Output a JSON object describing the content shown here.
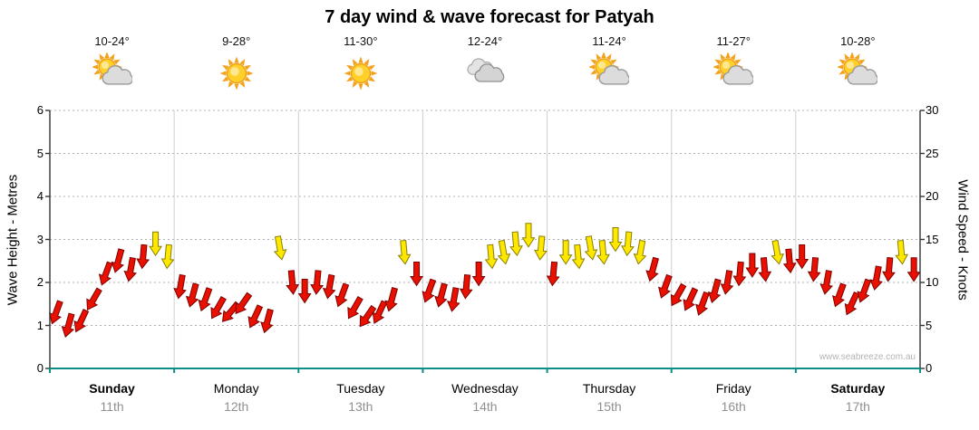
{
  "title": "7 day wind & wave forecast for Patyah",
  "watermark": "www.seabreeze.com.au",
  "left_axis": {
    "label": "Wave Height - Metres",
    "min": 0,
    "max": 6,
    "ticks": [
      0,
      1,
      2,
      3,
      4,
      5,
      6
    ]
  },
  "right_axis": {
    "label": "Wind Speed - Knots",
    "min": 0,
    "max": 30,
    "ticks": [
      0,
      5,
      10,
      15,
      20,
      25,
      30
    ]
  },
  "days": [
    {
      "name": "Sunday",
      "date": "11th",
      "temp": "10-24°",
      "icon": "partly-cloudy",
      "weekend": true
    },
    {
      "name": "Monday",
      "date": "12th",
      "temp": "9-28°",
      "icon": "sunny",
      "weekend": false
    },
    {
      "name": "Tuesday",
      "date": "13th",
      "temp": "11-30°",
      "icon": "sunny",
      "weekend": false
    },
    {
      "name": "Wednesday",
      "date": "14th",
      "temp": "12-24°",
      "icon": "cloudy",
      "weekend": false
    },
    {
      "name": "Thursday",
      "date": "15th",
      "temp": "11-24°",
      "icon": "partly-cloudy",
      "weekend": false
    },
    {
      "name": "Friday",
      "date": "16th",
      "temp": "11-27°",
      "icon": "partly-cloudy",
      "weekend": false
    },
    {
      "name": "Saturday",
      "date": "17th",
      "temp": "10-28°",
      "icon": "partly-cloudy",
      "weekend": true
    }
  ],
  "chart_data": {
    "type": "scatter",
    "subtype": "wind-direction-arrows",
    "title": "7 day wind & wave forecast for Patyah",
    "x_axis": {
      "categories": [
        "Sunday 11th",
        "Monday 12th",
        "Tuesday 13th",
        "Wednesday 14th",
        "Thursday 15th",
        "Friday 16th",
        "Saturday 17th"
      ],
      "range_days": 7
    },
    "y_left": {
      "label": "Wave Height - Metres",
      "min": 0,
      "max": 6
    },
    "y_right": {
      "label": "Wind Speed - Knots",
      "min": 0,
      "max": 30
    },
    "grid": true,
    "legend_position": "none",
    "point_format": [
      "day_index",
      "day_fraction",
      "wind_speed_knots",
      "direction_deg",
      "color_key"
    ],
    "colors": {
      "r": {
        "name": "red",
        "fill": "#e81000",
        "stroke": "#7d0000"
      },
      "y": {
        "name": "yellow",
        "fill": "#ffe800",
        "stroke": "#8a7d00"
      }
    },
    "points": [
      [
        0,
        0.05,
        6.5,
        200,
        "r"
      ],
      [
        0,
        0.15,
        5,
        195,
        "r"
      ],
      [
        0,
        0.25,
        5.5,
        205,
        "r"
      ],
      [
        0,
        0.35,
        8,
        210,
        "r"
      ],
      [
        0,
        0.45,
        11,
        200,
        "r"
      ],
      [
        0,
        0.55,
        12.5,
        195,
        "r"
      ],
      [
        0,
        0.65,
        11.5,
        190,
        "r"
      ],
      [
        0,
        0.75,
        13,
        185,
        "r"
      ],
      [
        0,
        0.85,
        14.5,
        180,
        "y"
      ],
      [
        0,
        0.95,
        13,
        185,
        "y"
      ],
      [
        1,
        0.05,
        9.5,
        190,
        "r"
      ],
      [
        1,
        0.15,
        8.5,
        195,
        "r"
      ],
      [
        1,
        0.25,
        8,
        200,
        "r"
      ],
      [
        1,
        0.35,
        7,
        210,
        "r"
      ],
      [
        1,
        0.45,
        6.5,
        220,
        "r"
      ],
      [
        1,
        0.55,
        7.5,
        215,
        "r"
      ],
      [
        1,
        0.65,
        6,
        205,
        "r"
      ],
      [
        1,
        0.75,
        5.5,
        195,
        "r"
      ],
      [
        1,
        0.85,
        14,
        170,
        "y"
      ],
      [
        1,
        0.95,
        10,
        175,
        "r"
      ],
      [
        2,
        0.05,
        9,
        180,
        "r"
      ],
      [
        2,
        0.15,
        10,
        185,
        "r"
      ],
      [
        2,
        0.25,
        9.5,
        190,
        "r"
      ],
      [
        2,
        0.35,
        8.5,
        200,
        "r"
      ],
      [
        2,
        0.45,
        7,
        210,
        "r"
      ],
      [
        2,
        0.55,
        6,
        215,
        "r"
      ],
      [
        2,
        0.65,
        6.5,
        205,
        "r"
      ],
      [
        2,
        0.75,
        8,
        195,
        "r"
      ],
      [
        2,
        0.85,
        13.5,
        175,
        "y"
      ],
      [
        2,
        0.95,
        11,
        180,
        "r"
      ],
      [
        3,
        0.05,
        9,
        200,
        "r"
      ],
      [
        3,
        0.15,
        8.5,
        195,
        "r"
      ],
      [
        3,
        0.25,
        8,
        190,
        "r"
      ],
      [
        3,
        0.35,
        9.5,
        185,
        "r"
      ],
      [
        3,
        0.45,
        11,
        180,
        "r"
      ],
      [
        3,
        0.55,
        13,
        175,
        "y"
      ],
      [
        3,
        0.65,
        13.5,
        170,
        "y"
      ],
      [
        3,
        0.75,
        14.5,
        175,
        "y"
      ],
      [
        3,
        0.85,
        15.5,
        180,
        "y"
      ],
      [
        3,
        0.95,
        14,
        185,
        "y"
      ],
      [
        4,
        0.05,
        11,
        185,
        "r"
      ],
      [
        4,
        0.15,
        13.5,
        180,
        "y"
      ],
      [
        4,
        0.25,
        13,
        175,
        "y"
      ],
      [
        4,
        0.35,
        14,
        170,
        "y"
      ],
      [
        4,
        0.45,
        13.5,
        175,
        "y"
      ],
      [
        4,
        0.55,
        15,
        180,
        "y"
      ],
      [
        4,
        0.65,
        14.5,
        185,
        "y"
      ],
      [
        4,
        0.75,
        13.5,
        190,
        "y"
      ],
      [
        4,
        0.85,
        11.5,
        195,
        "r"
      ],
      [
        4,
        0.95,
        9.5,
        200,
        "r"
      ],
      [
        5,
        0.05,
        8.5,
        210,
        "r"
      ],
      [
        5,
        0.15,
        8,
        205,
        "r"
      ],
      [
        5,
        0.25,
        7.5,
        200,
        "r"
      ],
      [
        5,
        0.35,
        9,
        195,
        "r"
      ],
      [
        5,
        0.45,
        10,
        190,
        "r"
      ],
      [
        5,
        0.55,
        11,
        185,
        "r"
      ],
      [
        5,
        0.65,
        12,
        180,
        "r"
      ],
      [
        5,
        0.75,
        11.5,
        175,
        "r"
      ],
      [
        5,
        0.85,
        13.5,
        170,
        "y"
      ],
      [
        5,
        0.95,
        12.5,
        175,
        "r"
      ],
      [
        6,
        0.05,
        13,
        180,
        "r"
      ],
      [
        6,
        0.15,
        11.5,
        185,
        "r"
      ],
      [
        6,
        0.25,
        10,
        190,
        "r"
      ],
      [
        6,
        0.35,
        8.5,
        200,
        "r"
      ],
      [
        6,
        0.45,
        7.5,
        205,
        "r"
      ],
      [
        6,
        0.55,
        9,
        200,
        "r"
      ],
      [
        6,
        0.65,
        10.5,
        190,
        "r"
      ],
      [
        6,
        0.75,
        11.5,
        185,
        "r"
      ],
      [
        6,
        0.85,
        13.5,
        175,
        "y"
      ],
      [
        6,
        0.95,
        11.5,
        180,
        "r"
      ]
    ]
  }
}
